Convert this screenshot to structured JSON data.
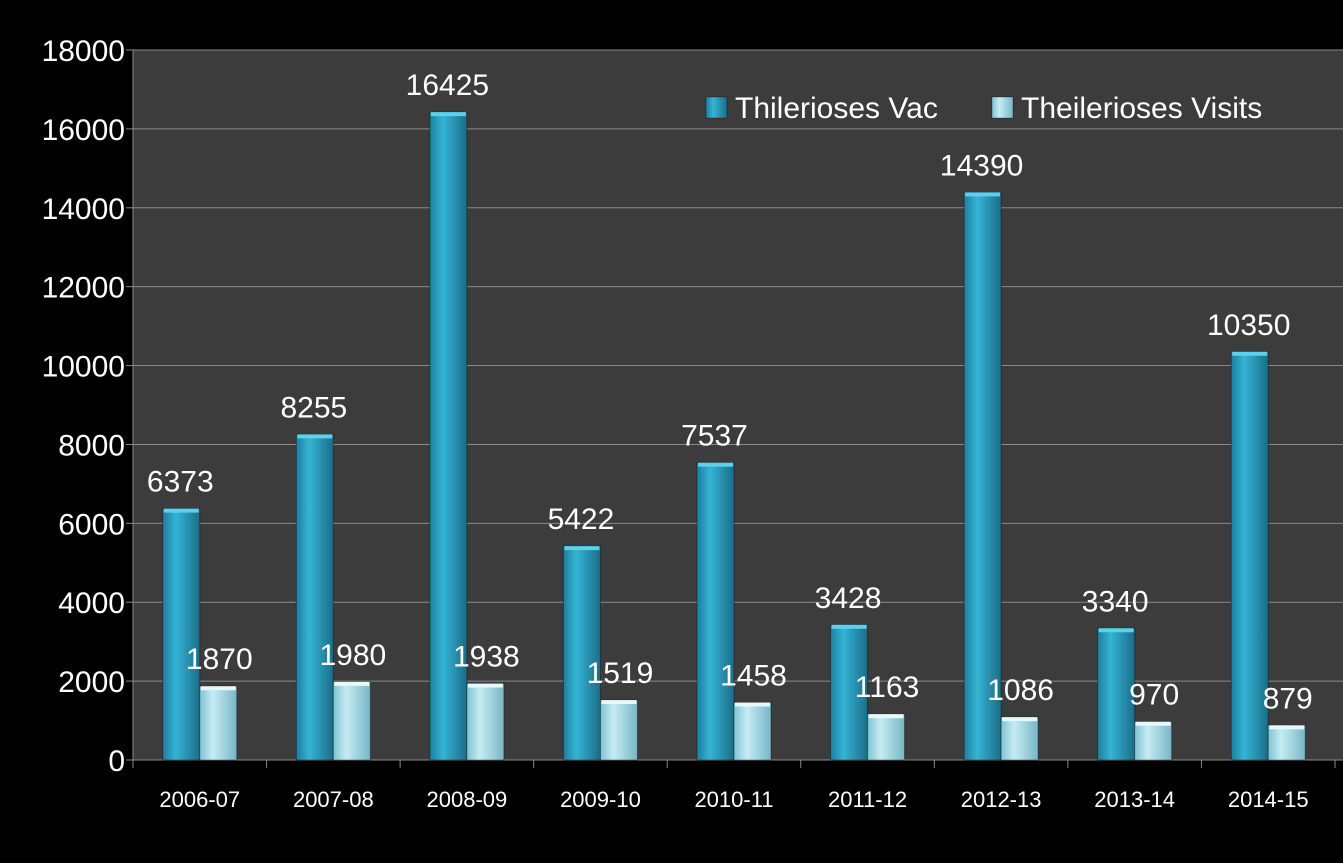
{
  "chart_data": {
    "type": "bar",
    "title": "",
    "xlabel": "",
    "ylabel": "",
    "categories": [
      "2006-07",
      "2007-08",
      "2008-09",
      "2009-10",
      "2010-11",
      "2011-12",
      "2012-13",
      "2013-14",
      "2014-15"
    ],
    "series": [
      {
        "name": "Thilerioses Vac",
        "values": [
          6373,
          8255,
          16425,
          5422,
          7537,
          3428,
          14390,
          3340,
          10350
        ]
      },
      {
        "name": "Theilerioses Visits",
        "values": [
          1870,
          1980,
          1938,
          1519,
          1458,
          1163,
          1086,
          970,
          879
        ]
      }
    ],
    "ylim": [
      0,
      18000
    ],
    "y_ticks": [
      "0",
      "2000",
      "4000",
      "6000",
      "8000",
      "10000",
      "12000",
      "14000",
      "16000",
      "18000"
    ],
    "grid": true,
    "legend_position": "top-right",
    "colors": {
      "page_background": "#000000",
      "plot_background": "#3c3c3c",
      "gridline": "#8a8a8a",
      "series_1": "#2ba3c6",
      "series_2": "#a8dde8"
    }
  }
}
